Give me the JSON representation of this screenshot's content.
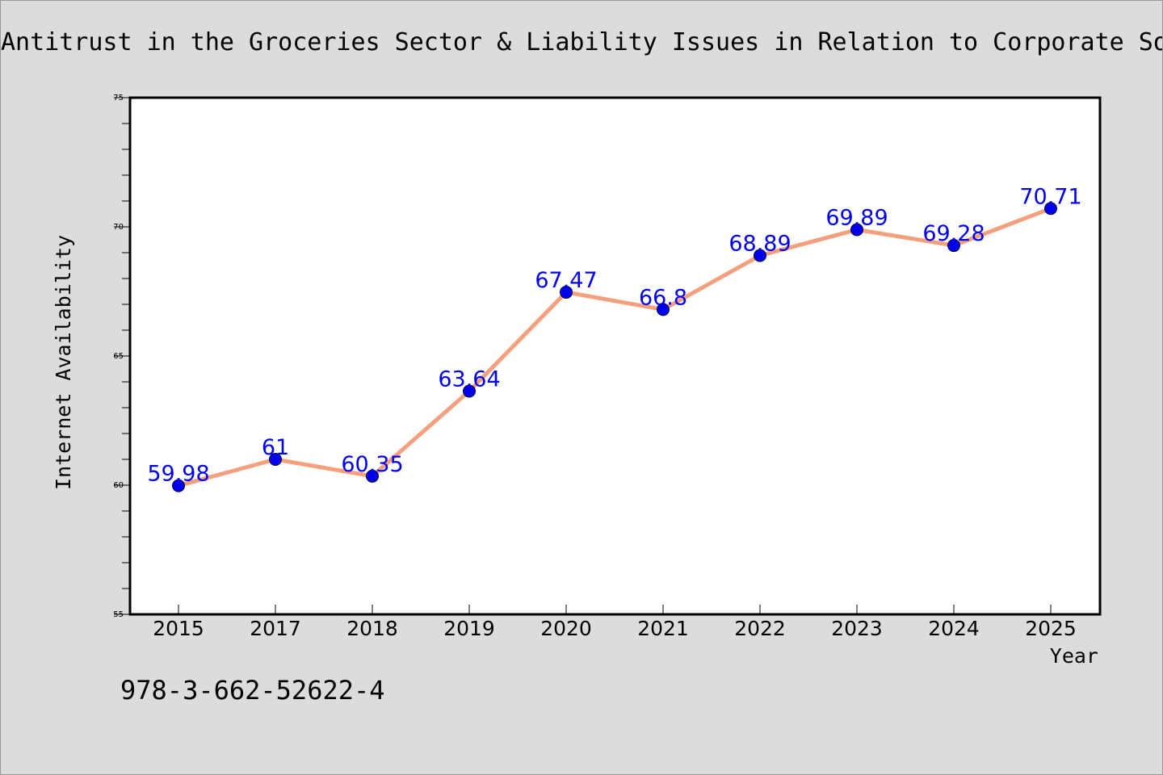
{
  "chart_data": {
    "type": "line",
    "title": "Antitrust in the Groceries Sector & Liability Issues in Relation to Corporate So",
    "xlabel": "Year",
    "ylabel": "Internet Availability",
    "categories": [
      "2015",
      "2017",
      "2018",
      "2019",
      "2020",
      "2021",
      "2022",
      "2023",
      "2024",
      "2025"
    ],
    "series": [
      {
        "values": [
          59.98,
          61,
          60.35,
          63.64,
          67.47,
          66.8,
          68.89,
          69.89,
          69.28,
          70.71
        ],
        "data_labels": [
          "59.98",
          "61",
          "60.35",
          "63.64",
          "67.47",
          "66.8",
          "68.89",
          "69.89",
          "69.28",
          "70.71"
        ],
        "line_color": "#f4a07e",
        "marker_color": "#0000ee",
        "label_color": "#0000ee"
      }
    ],
    "ylim": [
      55,
      75
    ],
    "y_ticks": [
      "55",
      "60",
      "65",
      "70",
      "75"
    ],
    "grid": false,
    "legend": "none"
  },
  "footer_text": "978-3-662-52622-4"
}
